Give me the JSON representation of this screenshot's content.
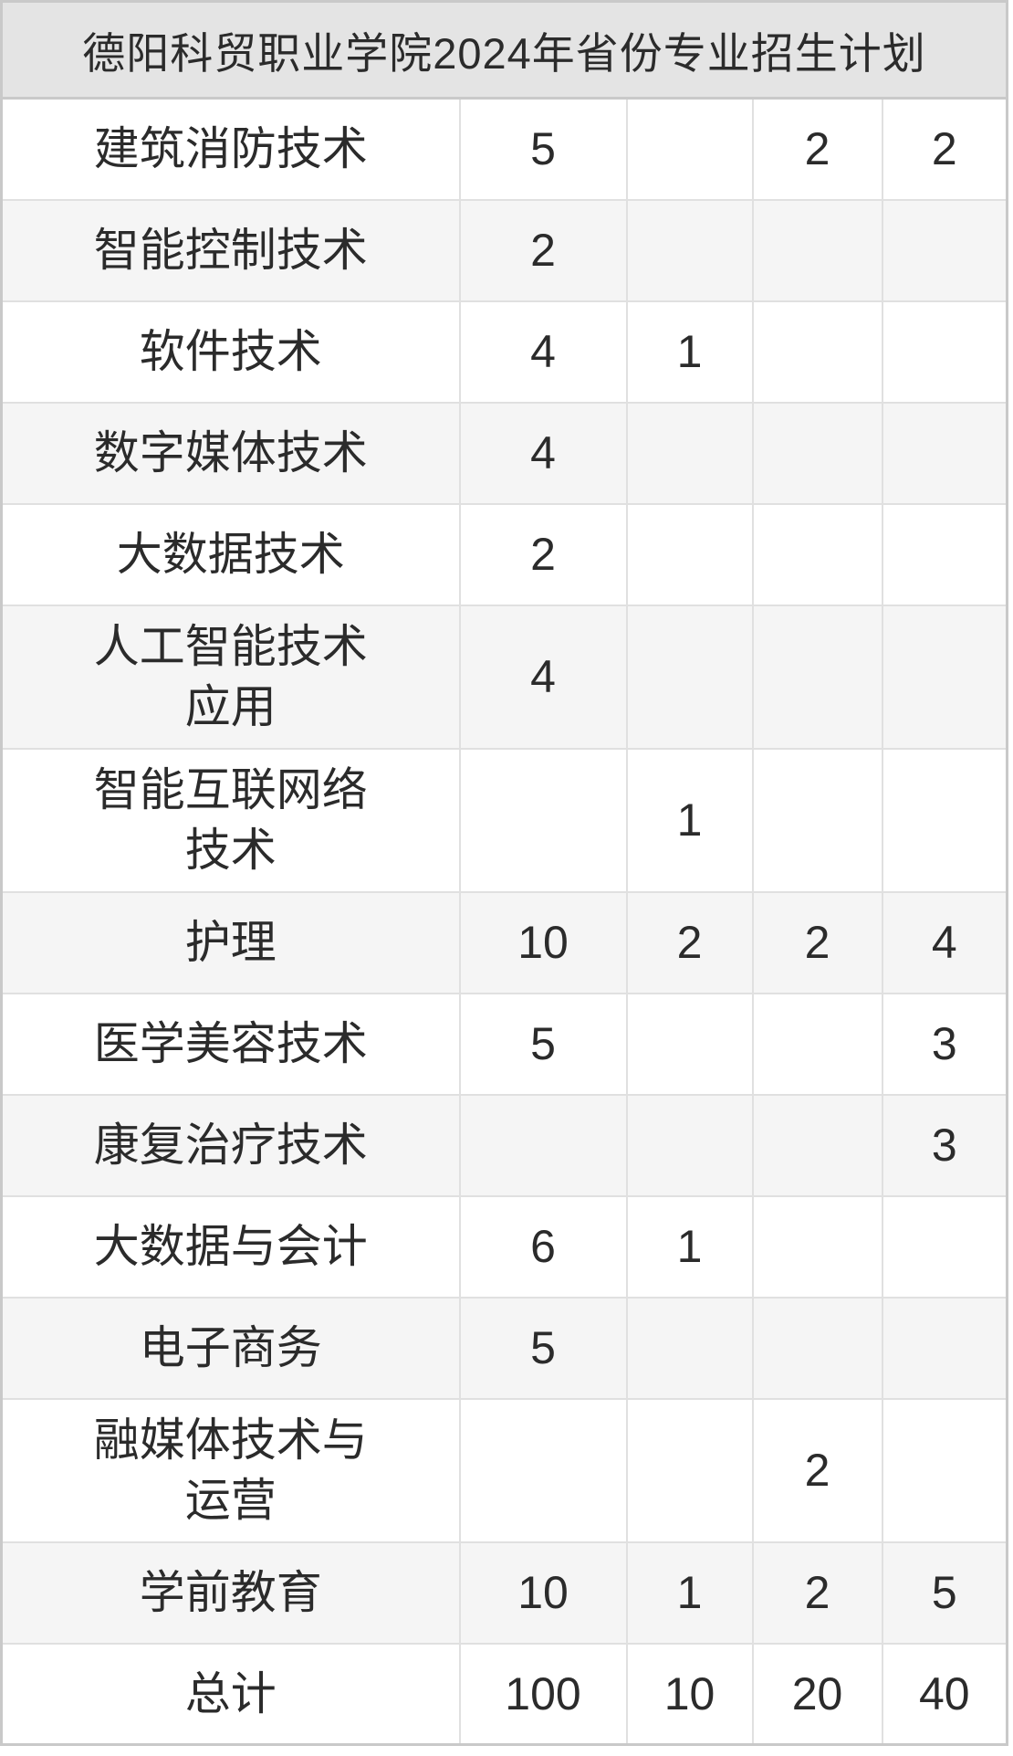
{
  "table": {
    "title": "德阳科贸职业学院2024年省份专业招生计划",
    "colors": {
      "header_bg": "#e4e4e4",
      "row_bg": "#ffffff",
      "row_alt_bg": "#f5f5f5",
      "grid_line": "#e0e0e0",
      "outer_border": "#c9c9c9",
      "text": "#2b2b2b"
    },
    "rows": [
      {
        "major": "建筑消防技术",
        "values": [
          "5",
          "",
          "2",
          "2"
        ]
      },
      {
        "major": "智能控制技术",
        "values": [
          "2",
          "",
          "",
          ""
        ]
      },
      {
        "major": "软件技术",
        "values": [
          "4",
          "1",
          "",
          ""
        ]
      },
      {
        "major": "数字媒体技术",
        "values": [
          "4",
          "",
          "",
          ""
        ]
      },
      {
        "major": "大数据技术",
        "values": [
          "2",
          "",
          "",
          ""
        ]
      },
      {
        "major": "人工智能技术\n应用",
        "values": [
          "4",
          "",
          "",
          ""
        ]
      },
      {
        "major": "智能互联网络\n技术",
        "values": [
          "",
          "1",
          "",
          ""
        ]
      },
      {
        "major": "护理",
        "values": [
          "10",
          "2",
          "2",
          "4"
        ]
      },
      {
        "major": "医学美容技术",
        "values": [
          "5",
          "",
          "",
          "3"
        ]
      },
      {
        "major": "康复治疗技术",
        "values": [
          "",
          "",
          "",
          "3"
        ]
      },
      {
        "major": "大数据与会计",
        "values": [
          "6",
          "1",
          "",
          ""
        ]
      },
      {
        "major": "电子商务",
        "values": [
          "5",
          "",
          "",
          ""
        ]
      },
      {
        "major": "融媒体技术与\n运营",
        "values": [
          "",
          "",
          "2",
          ""
        ]
      },
      {
        "major": "学前教育",
        "values": [
          "10",
          "1",
          "2",
          "5"
        ]
      },
      {
        "major": "总计",
        "values": [
          "100",
          "10",
          "20",
          "40"
        ]
      }
    ]
  }
}
